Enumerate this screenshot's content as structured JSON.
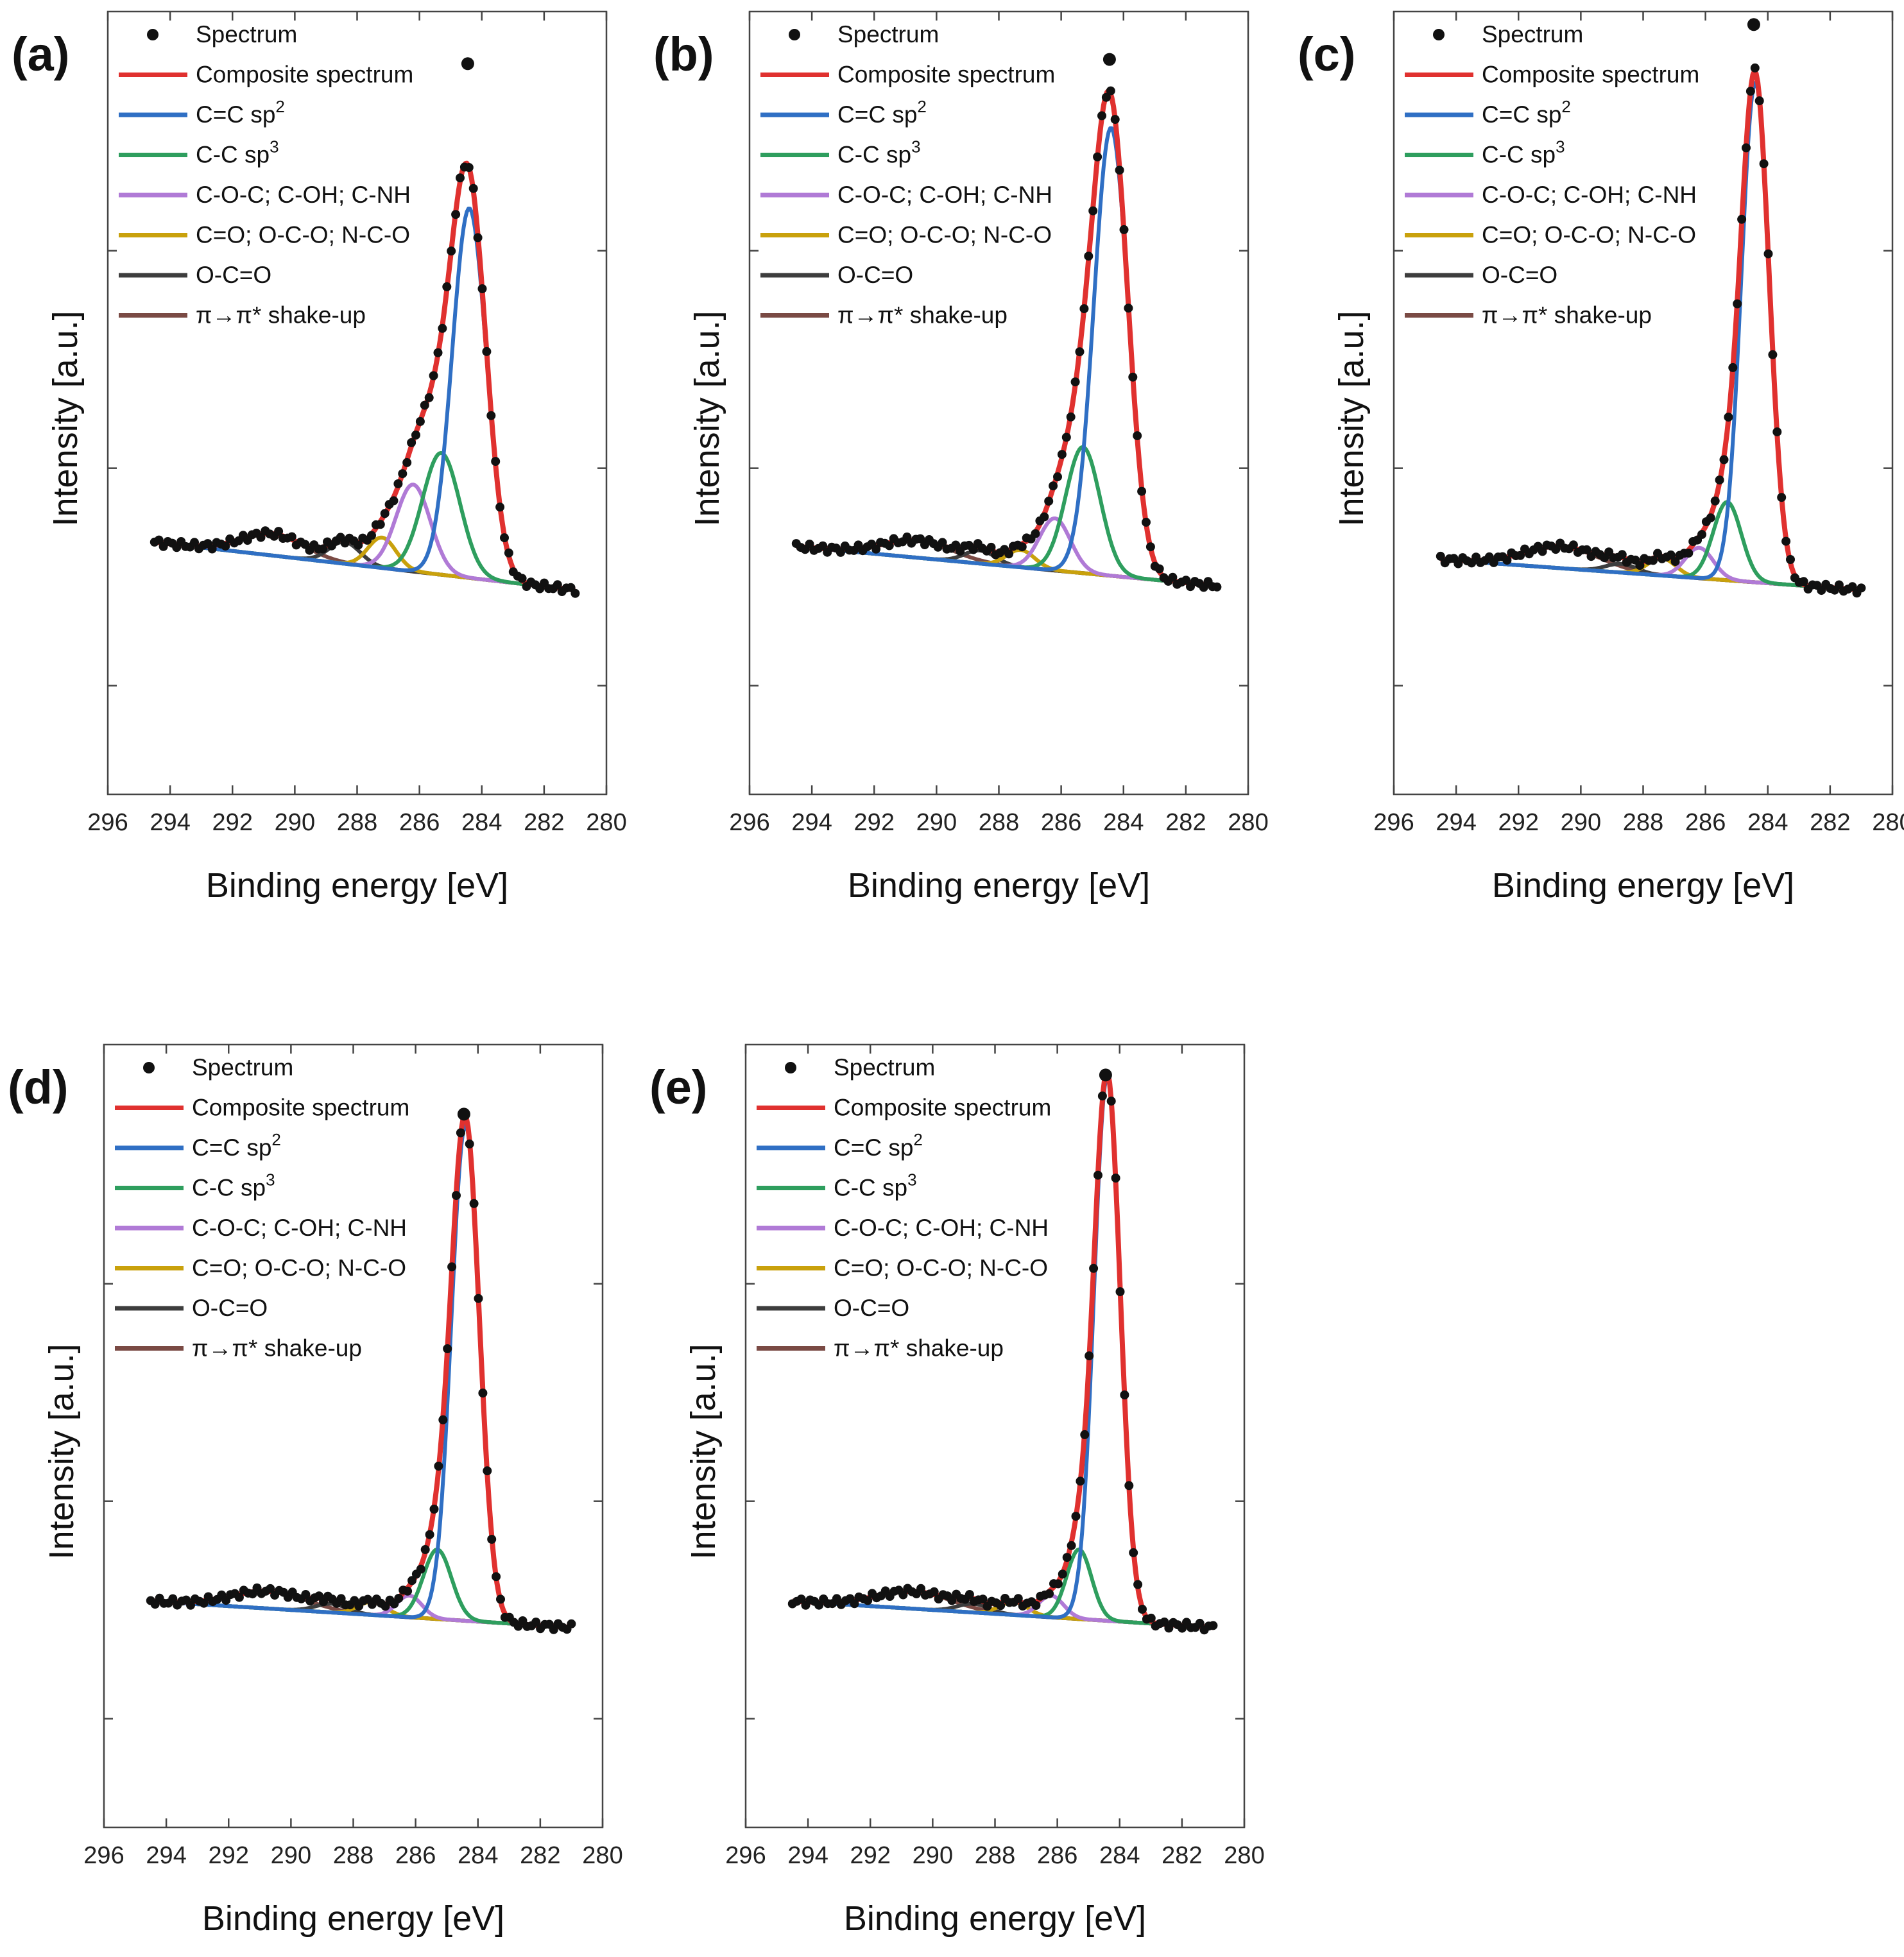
{
  "figure": {
    "xlabel": "Binding energy [eV]",
    "ylabel": "Intensity [a.u.]",
    "x_ticks": [
      296,
      294,
      292,
      290,
      288,
      286,
      284,
      282,
      280
    ],
    "xlim": [
      296,
      280
    ],
    "ylim": [
      -0.45,
      1.35
    ],
    "legend": [
      {
        "key": "spectrum",
        "label": "Spectrum",
        "marker": "dot"
      },
      {
        "key": "composite",
        "label": "Composite spectrum",
        "marker": "line"
      },
      {
        "key": "sp2",
        "label": "C=C sp",
        "sup": "2",
        "marker": "line"
      },
      {
        "key": "sp3",
        "label": "C-C sp",
        "sup": "3",
        "marker": "line"
      },
      {
        "key": "coc",
        "label": "C-O-C; C-OH; C-NH",
        "marker": "line"
      },
      {
        "key": "co",
        "label": "C=O; O-C-O; N-C-O",
        "marker": "line"
      },
      {
        "key": "oco",
        "label": "O-C=O",
        "marker": "line"
      },
      {
        "key": "shake",
        "label": "π→π* shake-up",
        "marker": "line"
      }
    ],
    "colors": {
      "spectrum": "#111111",
      "composite": "#e0312f",
      "sp2": "#2f6fc4",
      "sp3": "#2e9e5e",
      "coc": "#b07ad6",
      "co": "#c9a10c",
      "oco": "#3d3d3d",
      "shake": "#7a4a44"
    }
  },
  "chart_data": [
    {
      "panel": "(a)",
      "type": "line",
      "title": "",
      "xlabel": "Binding energy [eV]",
      "ylabel": "Intensity [a.u.]",
      "xlim": [
        296,
        280
      ],
      "ylim": [
        -0.45,
        1.35
      ],
      "x_range": [
        294.5,
        281.0
      ],
      "baseline": {
        "left": 0.13,
        "right": 0.02
      },
      "peaks": [
        {
          "name": "C=C sp2",
          "key": "sp2",
          "center": 284.4,
          "amp": 0.85,
          "width": 0.55
        },
        {
          "name": "C-C sp3",
          "key": "sp3",
          "center": 285.3,
          "amp": 0.28,
          "width": 0.6
        },
        {
          "name": "C-O-C; C-OH; C-NH",
          "key": "coc",
          "center": 286.2,
          "amp": 0.2,
          "width": 0.55
        },
        {
          "name": "C=O; O-C-O; N-C-O",
          "key": "co",
          "center": 287.2,
          "amp": 0.07,
          "width": 0.45
        },
        {
          "name": "O-C=O",
          "key": "oco",
          "center": 288.4,
          "amp": 0.05,
          "width": 0.5
        },
        {
          "name": "π→π* shake-up",
          "key": "shake",
          "center": 290.7,
          "amp": 0.05,
          "width": 1.0
        }
      ],
      "spectrum_peak_y": 1.23
    },
    {
      "panel": "(b)",
      "type": "line",
      "title": "",
      "xlabel": "Binding energy [eV]",
      "ylabel": "Intensity [a.u.]",
      "xlim": [
        296,
        280
      ],
      "ylim": [
        -0.45,
        1.35
      ],
      "x_range": [
        294.5,
        281.0
      ],
      "baseline": {
        "left": 0.12,
        "right": 0.03
      },
      "peaks": [
        {
          "name": "C=C sp2",
          "key": "sp2",
          "center": 284.4,
          "amp": 1.03,
          "width": 0.55
        },
        {
          "name": "C-C sp3",
          "key": "sp3",
          "center": 285.3,
          "amp": 0.29,
          "width": 0.55
        },
        {
          "name": "C-O-C; C-OH; C-NH",
          "key": "coc",
          "center": 286.2,
          "amp": 0.12,
          "width": 0.5
        },
        {
          "name": "C=O; O-C-O; N-C-O",
          "key": "co",
          "center": 287.3,
          "amp": 0.04,
          "width": 0.45
        },
        {
          "name": "O-C=O",
          "key": "oco",
          "center": 288.6,
          "amp": 0.03,
          "width": 0.5
        },
        {
          "name": "π→π* shake-up",
          "key": "shake",
          "center": 290.6,
          "amp": 0.04,
          "width": 1.1
        }
      ],
      "spectrum_peak_y": 1.24
    },
    {
      "panel": "(c)",
      "type": "line",
      "title": "",
      "xlabel": "Binding energy [eV]",
      "ylabel": "Intensity [a.u.]",
      "xlim": [
        296,
        280
      ],
      "ylim": [
        -0.45,
        1.35
      ],
      "x_range": [
        294.5,
        281.0
      ],
      "baseline": {
        "left": 0.09,
        "right": 0.02
      },
      "peaks": [
        {
          "name": "C=C sp2",
          "key": "sp2",
          "center": 284.4,
          "amp": 1.15,
          "width": 0.45
        },
        {
          "name": "C-C sp3",
          "key": "sp3",
          "center": 285.3,
          "amp": 0.18,
          "width": 0.45
        },
        {
          "name": "C-O-C; C-OH; C-NH",
          "key": "coc",
          "center": 286.2,
          "amp": 0.07,
          "width": 0.45
        },
        {
          "name": "C=O; O-C-O; N-C-O",
          "key": "co",
          "center": 287.4,
          "amp": 0.04,
          "width": 0.45
        },
        {
          "name": "O-C=O",
          "key": "oco",
          "center": 288.7,
          "amp": 0.02,
          "width": 0.5
        },
        {
          "name": "π→π* shake-up",
          "key": "shake",
          "center": 290.6,
          "amp": 0.05,
          "width": 1.2
        }
      ],
      "spectrum_peak_y": 1.32
    },
    {
      "panel": "(d)",
      "type": "line",
      "title": "",
      "xlabel": "Binding energy [eV]",
      "ylabel": "Intensity [a.u.]",
      "xlim": [
        296,
        280
      ],
      "ylim": [
        -0.45,
        1.35
      ],
      "x_range": [
        294.5,
        281.0
      ],
      "baseline": {
        "left": 0.07,
        "right": 0.01
      },
      "peaks": [
        {
          "name": "C=C sp2",
          "key": "sp2",
          "center": 284.4,
          "amp": 1.14,
          "width": 0.45
        },
        {
          "name": "C-C sp3",
          "key": "sp3",
          "center": 285.3,
          "amp": 0.16,
          "width": 0.45
        },
        {
          "name": "C-O-C; C-OH; C-NH",
          "key": "coc",
          "center": 286.2,
          "amp": 0.05,
          "width": 0.4
        },
        {
          "name": "C=O; O-C-O; N-C-O",
          "key": "co",
          "center": 287.4,
          "amp": 0.03,
          "width": 0.45
        },
        {
          "name": "O-C=O",
          "key": "oco",
          "center": 288.7,
          "amp": 0.02,
          "width": 0.5
        },
        {
          "name": "π→π* shake-up",
          "key": "shake",
          "center": 290.7,
          "amp": 0.04,
          "width": 1.2
        }
      ],
      "spectrum_peak_y": 1.19
    },
    {
      "panel": "(e)",
      "type": "line",
      "title": "",
      "xlabel": "Binding energy [eV]",
      "ylabel": "Intensity [a.u.]",
      "xlim": [
        296,
        280
      ],
      "ylim": [
        -0.45,
        1.35
      ],
      "x_range": [
        294.5,
        281.0
      ],
      "baseline": {
        "left": 0.07,
        "right": 0.01
      },
      "peaks": [
        {
          "name": "C=C sp2",
          "key": "sp2",
          "center": 284.4,
          "amp": 1.25,
          "width": 0.42
        },
        {
          "name": "C-C sp3",
          "key": "sp3",
          "center": 285.3,
          "amp": 0.16,
          "width": 0.4
        },
        {
          "name": "C-O-C; C-OH; C-NH",
          "key": "coc",
          "center": 286.2,
          "amp": 0.05,
          "width": 0.4
        },
        {
          "name": "C=O; O-C-O; N-C-O",
          "key": "co",
          "center": 287.4,
          "amp": 0.03,
          "width": 0.45
        },
        {
          "name": "O-C=O",
          "key": "oco",
          "center": 288.7,
          "amp": 0.02,
          "width": 0.5
        },
        {
          "name": "π→π* shake-up",
          "key": "shake",
          "center": 290.6,
          "amp": 0.04,
          "width": 1.2
        }
      ],
      "spectrum_peak_y": 1.28
    }
  ]
}
